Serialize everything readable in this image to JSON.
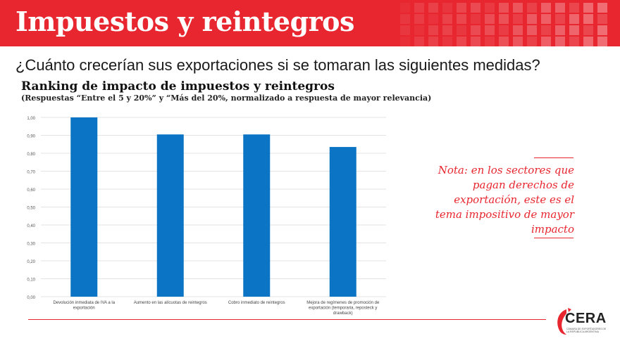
{
  "header": {
    "title": "Impuestos y reintegros"
  },
  "question": "¿Cuánto crecerían sus exportaciones si se tomaran las siguientes medidas?",
  "note": {
    "text": "Nota: en los sectores que pagan derechos de exportación, este es el tema impositivo de mayor impacto"
  },
  "logo": {
    "name": "CERA",
    "subtitle": "CÁMARA DE EXPORTADORES DE LA REPÚBLICA ARGENTINA"
  },
  "colors": {
    "accent": "#e8262f",
    "bar": "#0b74c4"
  },
  "chart_data": {
    "type": "bar",
    "title": "Ranking de impacto de impuestos y reintegros",
    "subtitle": "(Respuestas “Entre el 5 y 20%” y “Más del 20%, normalizado a respuesta de mayor relevancia)",
    "categories": [
      [
        "Devolución inmediata de IVA a la",
        "exportación"
      ],
      [
        "Aumento en las alícuotas de reintegros"
      ],
      [
        "Cobro inmediato de reintegros"
      ],
      [
        "Mejora de regímenes de promoción de",
        "exportación (temporaria, reposteck y",
        "drawback)"
      ]
    ],
    "values": [
      1.0,
      0.905,
      0.905,
      0.835
    ],
    "ylim": [
      0,
      1.0
    ],
    "yticks": [
      "0,00",
      "0,10",
      "0,20",
      "0,30",
      "0,40",
      "0,50",
      "0,60",
      "0,70",
      "0,80",
      "0,90",
      "1,00"
    ],
    "grid": true,
    "legend": false
  }
}
